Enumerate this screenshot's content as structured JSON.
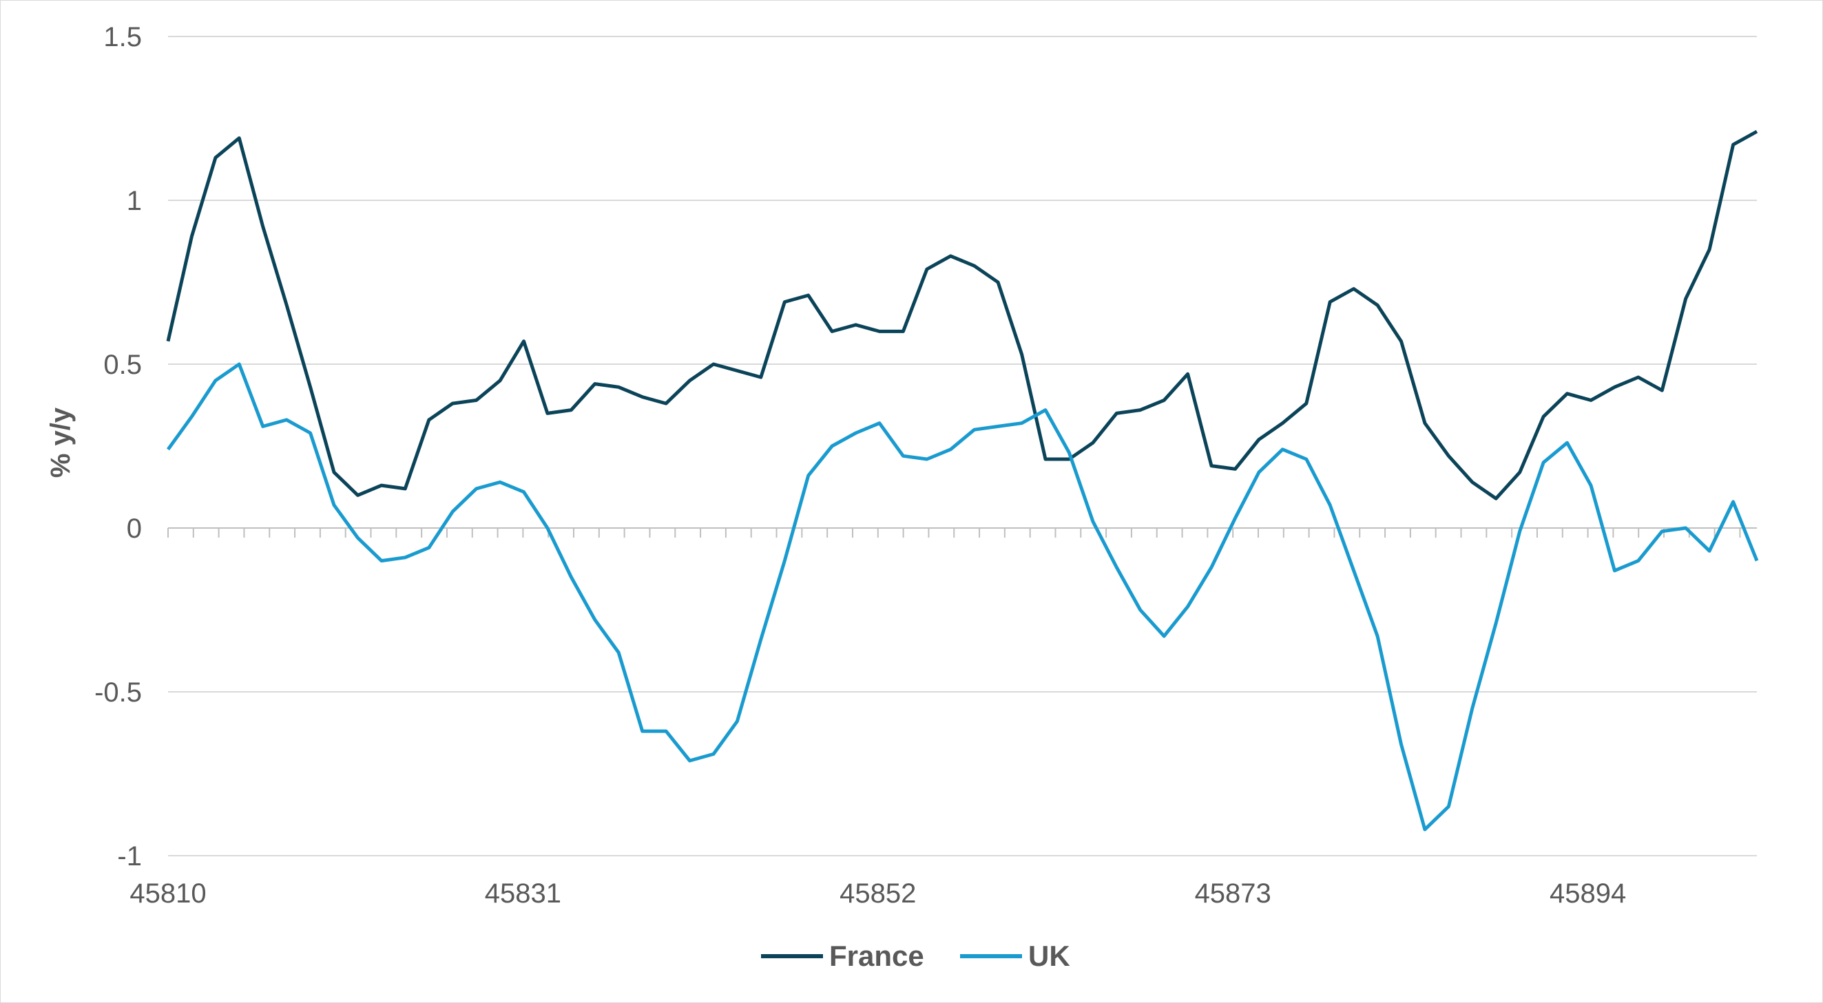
{
  "chart_data": {
    "type": "line",
    "ylabel": "% y/y",
    "xlabel": "",
    "ylim": [
      -1,
      1.5
    ],
    "yticks": [
      1.5,
      1,
      0.5,
      0,
      -0.5,
      -1
    ],
    "ytick_labels": [
      "1.5",
      "1",
      "0.5",
      "0",
      "-0.5",
      "-1"
    ],
    "xlim": [
      45810,
      45904
    ],
    "xticks": [
      45810,
      45831,
      45852,
      45873,
      45894
    ],
    "xtick_labels": [
      "45810",
      "45831",
      "45852",
      "45873",
      "45894"
    ],
    "grid": "horizontal",
    "legend_position": "bottom",
    "series": [
      {
        "name": "France",
        "color": "#0b4459",
        "values": [
          0.57,
          0.89,
          1.13,
          1.19,
          0.92,
          0.68,
          0.43,
          0.17,
          0.1,
          0.13,
          0.12,
          0.33,
          0.38,
          0.39,
          0.45,
          0.57,
          0.35,
          0.36,
          0.44,
          0.43,
          0.4,
          0.38,
          0.45,
          0.5,
          0.48,
          0.46,
          0.69,
          0.71,
          0.6,
          0.62,
          0.6,
          0.6,
          0.79,
          0.83,
          0.8,
          0.75,
          0.53,
          0.21,
          0.21,
          0.26,
          0.35,
          0.36,
          0.39,
          0.47,
          0.19,
          0.18,
          0.27,
          0.32,
          0.38,
          0.69,
          0.73,
          0.68,
          0.57,
          0.32,
          0.22,
          0.14,
          0.09,
          0.17,
          0.34,
          0.41,
          0.39,
          0.43,
          0.46,
          0.42,
          0.7,
          0.85,
          1.17,
          1.21
        ]
      },
      {
        "name": "UK",
        "color": "#1a9bcf",
        "values": [
          0.24,
          0.34,
          0.45,
          0.5,
          0.31,
          0.33,
          0.29,
          0.07,
          -0.03,
          -0.1,
          -0.09,
          -0.06,
          0.05,
          0.12,
          0.14,
          0.11,
          0.0,
          -0.15,
          -0.28,
          -0.38,
          -0.62,
          -0.62,
          -0.71,
          -0.69,
          -0.59,
          -0.34,
          -0.1,
          0.16,
          0.25,
          0.29,
          0.32,
          0.22,
          0.21,
          0.24,
          0.3,
          0.31,
          0.32,
          0.36,
          0.23,
          0.02,
          -0.12,
          -0.25,
          -0.33,
          -0.24,
          -0.12,
          0.03,
          0.17,
          0.24,
          0.21,
          0.07,
          -0.13,
          -0.33,
          -0.66,
          -0.92,
          -0.85,
          -0.55,
          -0.29,
          -0.01,
          0.2,
          0.26,
          0.13,
          -0.13,
          -0.1,
          -0.01,
          0.0,
          -0.07,
          0.08,
          -0.1
        ]
      }
    ]
  }
}
